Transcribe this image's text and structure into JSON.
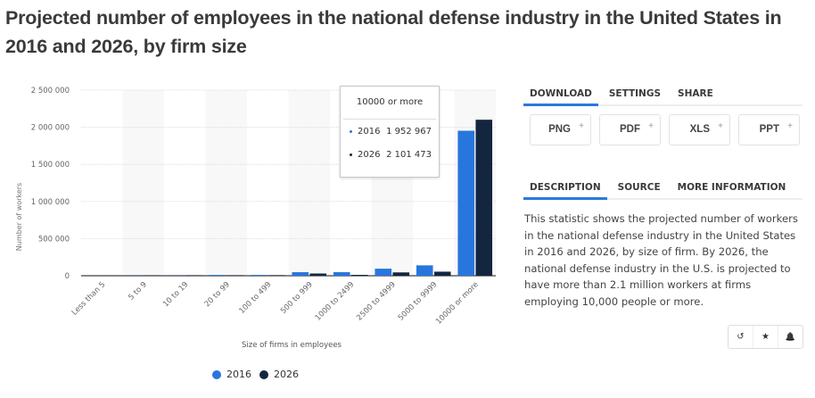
{
  "title": "Projected number of employees in the national defense industry in the United States in 2016 and 2026, by firm size",
  "chart_data": {
    "type": "bar",
    "title": "Projected number of employees in the national defense industry in the United States in 2016 and 2026, by firm size",
    "xlabel": "Size of firms in employees",
    "ylabel": "Number of workers",
    "ylim": [
      0,
      2500000
    ],
    "yticks": [
      0,
      500000,
      1000000,
      1500000,
      2000000,
      2500000
    ],
    "ytick_labels": [
      "0",
      "500 000",
      "1 000 000",
      "1 500 000",
      "2 000 000",
      "2 500 000"
    ],
    "grid": true,
    "legend_position": "bottom",
    "categories": [
      "Less than 5",
      "5 to 9",
      "10 to 19",
      "20 to 99",
      "100 to 499",
      "500 to 999",
      "1000 to 2499",
      "2500 to 4999",
      "5000 to 9999",
      "10000 or more"
    ],
    "series": [
      {
        "name": "2016",
        "color": "#2876dd",
        "values": [
          1000,
          2000,
          3000,
          9000,
          9000,
          48000,
          48000,
          95000,
          140000,
          1952967
        ]
      },
      {
        "name": "2026",
        "color": "#14263f",
        "values": [
          800,
          1500,
          2500,
          3000,
          4000,
          30000,
          12000,
          45000,
          55000,
          2101473
        ]
      }
    ],
    "tooltip": {
      "category": "10000 or more",
      "rows": [
        {
          "label": "2016",
          "value": "1 952 967"
        },
        {
          "label": "2026",
          "value": "2 101 473"
        }
      ]
    }
  },
  "colors": {
    "series_2016": "#2876dd",
    "series_2026": "#14263f",
    "accent": "#2a7ad8"
  },
  "panel": {
    "top_tabs": [
      {
        "label": "DOWNLOAD",
        "active": true
      },
      {
        "label": "SETTINGS",
        "active": false
      },
      {
        "label": "SHARE",
        "active": false
      }
    ],
    "download_buttons": [
      {
        "label": "PNG",
        "icon": "plus-icon"
      },
      {
        "label": "PDF",
        "icon": "plus-icon"
      },
      {
        "label": "XLS",
        "icon": "plus-icon"
      },
      {
        "label": "PPT",
        "icon": "plus-icon"
      }
    ],
    "info_tabs": [
      {
        "label": "DESCRIPTION",
        "active": true
      },
      {
        "label": "SOURCE",
        "active": false
      },
      {
        "label": "MORE INFORMATION",
        "active": false
      }
    ],
    "description": "This statistic shows the projected number of workers in the national defense industry in the United States in 2016 and 2026, by size of firm. By 2026, the national defense industry in the U.S. is projected to have more than 2.1 million workers at firms employing 10,000 people or more.",
    "actions": [
      {
        "name": "history-icon",
        "glyph": "↺"
      },
      {
        "name": "star-icon",
        "glyph": "★"
      },
      {
        "name": "bell-icon",
        "glyph": "🔔"
      }
    ]
  }
}
